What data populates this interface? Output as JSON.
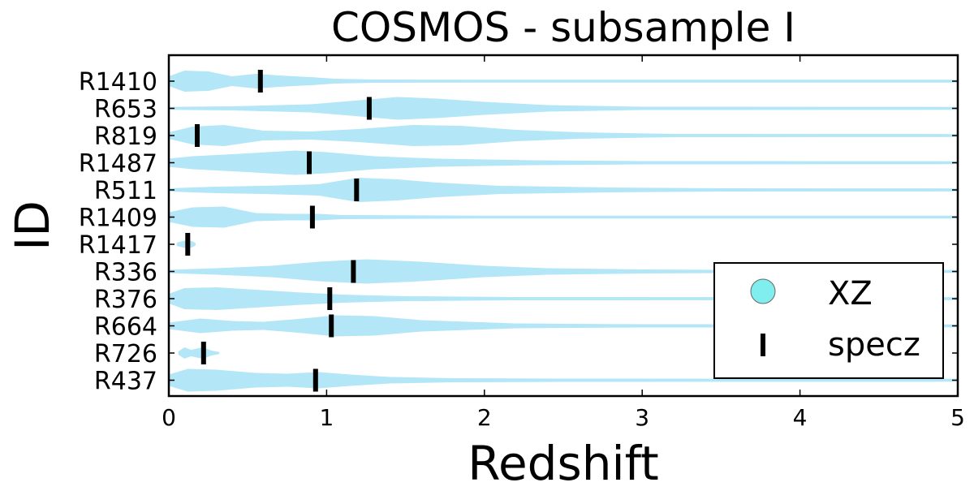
{
  "chart_data": {
    "type": "violin",
    "title": "COSMOS - subsample I",
    "xlabel": "Redshift",
    "ylabel": "ID",
    "xlim": [
      0,
      5
    ],
    "xticks": [
      "0",
      "1",
      "2",
      "3",
      "4",
      "5"
    ],
    "grid": false,
    "legend_position": "bottom-right",
    "categories": [
      "R1410",
      "R653",
      "R819",
      "R1487",
      "R511",
      "R1409",
      "R1417",
      "R336",
      "R376",
      "R664",
      "R726",
      "R437"
    ],
    "specz": [
      0.58,
      1.27,
      0.18,
      0.89,
      1.19,
      0.91,
      0.12,
      1.17,
      1.02,
      1.03,
      0.22,
      0.93
    ],
    "xz_extent": [
      5.0,
      5.0,
      5.0,
      5.0,
      5.0,
      5.0,
      0.17,
      5.0,
      5.0,
      5.0,
      0.32,
      5.0
    ],
    "series": [
      {
        "name": "XZ",
        "color": "#b3e6f7",
        "marker": "violin"
      },
      {
        "name": "specz",
        "color": "#000000",
        "marker": "vertical-bar"
      }
    ]
  },
  "legend": {
    "xz_label": "XZ",
    "specz_label": "specz",
    "xz_marker_color": "#80eeee"
  }
}
